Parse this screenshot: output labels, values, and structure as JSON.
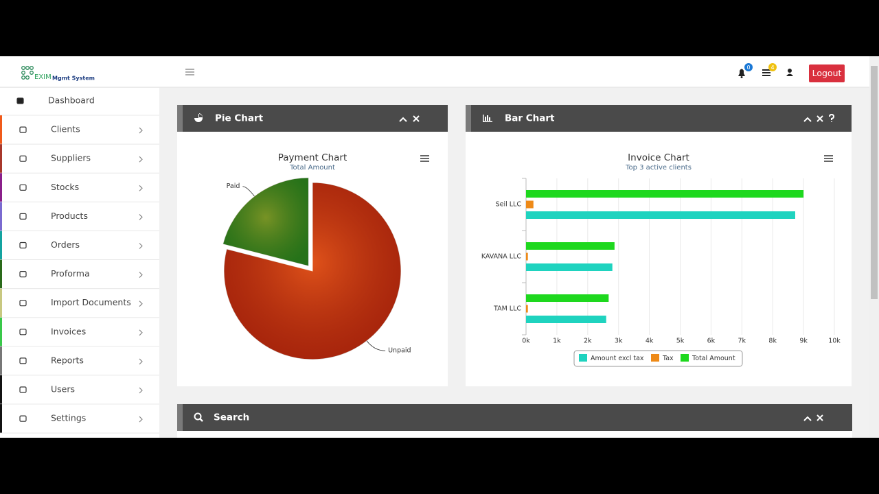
{
  "header": {
    "logo": "EXIM",
    "logo_sub": "Mgmt System",
    "notifications": 0,
    "tasks": 4,
    "logout": "Logout"
  },
  "sidebar": {
    "items": [
      "Dashboard",
      "Clients",
      "Suppliers",
      "Stocks",
      "Products",
      "Orders",
      "Proforma",
      "Import Documents",
      "Invoices",
      "Reports",
      "Users",
      "Settings"
    ]
  },
  "panels": [
    "Pie Chart",
    "Bar Chart",
    "Search"
  ],
  "chart_data": [
    {
      "type": "pie",
      "title": "Payment Chart",
      "subtitle": "Total Amount",
      "categories": [
        "Paid",
        "Unpaid"
      ],
      "values": [
        21,
        79
      ],
      "colors": [
        "#2f8f1f",
        "#cf2b0e"
      ]
    },
    {
      "type": "bar",
      "orientation": "horizontal",
      "title": "Invoice Chart",
      "subtitle": "Top 3 active clients",
      "categories": [
        "Seil LLC",
        "KAVANA LLC",
        "TAM LLC"
      ],
      "series": [
        {
          "name": "Amount excl tax",
          "color": "#1fd3bf",
          "values": [
            8730,
            2800,
            2600
          ]
        },
        {
          "name": "Tax",
          "color": "#ee8a18",
          "values": [
            240,
            60,
            60
          ]
        },
        {
          "name": "Total Amount",
          "color": "#1ed81e",
          "values": [
            9000,
            2870,
            2680
          ]
        }
      ],
      "xlim": [
        0,
        10000
      ],
      "xticks": [
        {
          "value": 0,
          "label": "0k"
        },
        {
          "value": 1000,
          "label": "1k"
        },
        {
          "value": 2000,
          "label": "2k"
        },
        {
          "value": 3000,
          "label": "3k"
        },
        {
          "value": 4000,
          "label": "4k"
        },
        {
          "value": 5000,
          "label": "5k"
        },
        {
          "value": 6000,
          "label": "6k"
        },
        {
          "value": 7000,
          "label": "7k"
        },
        {
          "value": 8000,
          "label": "8k"
        },
        {
          "value": 9000,
          "label": "9k"
        },
        {
          "value": 10000,
          "label": "10k"
        }
      ],
      "grid": true,
      "legend": "bottom"
    }
  ]
}
